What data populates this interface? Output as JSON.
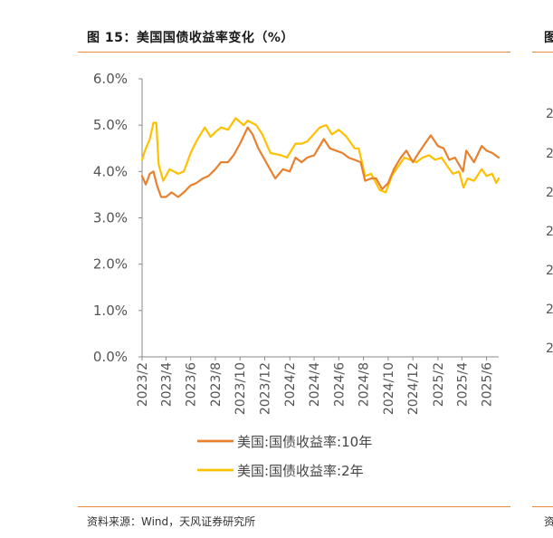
{
  "figure": {
    "title": "图 15：美国国债收益率变化（%）",
    "source": "资料来源：Wind，天风证券研究所",
    "neighbor_title_fragment": "图",
    "neighbor_source_fragment": "资",
    "neighbor_ticks": [
      "2",
      "2",
      "2",
      "2",
      "2",
      "2",
      "2"
    ]
  },
  "colors": {
    "accent_rule": "#e6893a",
    "series_10y": "#e8802e",
    "series_2y": "#ffc000"
  },
  "chart_data": {
    "type": "line",
    "title": "",
    "xlabel": "",
    "ylabel": "",
    "ylim": [
      0,
      6
    ],
    "yticks": [
      "0.0%",
      "1.0%",
      "2.0%",
      "3.0%",
      "4.0%",
      "5.0%",
      "6.0%"
    ],
    "xlim": [
      "2023-02",
      "2025-07"
    ],
    "xticks": [
      "2023/2",
      "2023/4",
      "2023/6",
      "2023/8",
      "2023/10",
      "2023/12",
      "2024/2",
      "2024/4",
      "2024/6",
      "2024/8",
      "2024/10",
      "2024/12",
      "2025/2",
      "2025/4",
      "2025/6"
    ],
    "grid": false,
    "legend_position": "bottom",
    "series": [
      {
        "name": "美国:国债收益率:10年",
        "color": "#e8802e",
        "points": [
          [
            "2023-02-01",
            3.9
          ],
          [
            "2023-02-10",
            3.72
          ],
          [
            "2023-02-20",
            3.95
          ],
          [
            "2023-03-01",
            4.0
          ],
          [
            "2023-03-10",
            3.7
          ],
          [
            "2023-03-20",
            3.45
          ],
          [
            "2023-04-01",
            3.45
          ],
          [
            "2023-04-15",
            3.55
          ],
          [
            "2023-05-01",
            3.45
          ],
          [
            "2023-05-15",
            3.55
          ],
          [
            "2023-06-01",
            3.7
          ],
          [
            "2023-06-15",
            3.75
          ],
          [
            "2023-07-01",
            3.85
          ],
          [
            "2023-07-15",
            3.9
          ],
          [
            "2023-08-01",
            4.05
          ],
          [
            "2023-08-15",
            4.2
          ],
          [
            "2023-09-01",
            4.2
          ],
          [
            "2023-09-15",
            4.35
          ],
          [
            "2023-10-01",
            4.6
          ],
          [
            "2023-10-20",
            4.95
          ],
          [
            "2023-11-01",
            4.8
          ],
          [
            "2023-11-15",
            4.5
          ],
          [
            "2023-12-01",
            4.25
          ],
          [
            "2023-12-27",
            3.85
          ],
          [
            "2024-01-15",
            4.05
          ],
          [
            "2024-02-01",
            4.0
          ],
          [
            "2024-02-15",
            4.3
          ],
          [
            "2024-03-01",
            4.2
          ],
          [
            "2024-03-15",
            4.3
          ],
          [
            "2024-04-01",
            4.35
          ],
          [
            "2024-04-25",
            4.7
          ],
          [
            "2024-05-10",
            4.5
          ],
          [
            "2024-05-25",
            4.45
          ],
          [
            "2024-06-10",
            4.4
          ],
          [
            "2024-06-25",
            4.3
          ],
          [
            "2024-07-10",
            4.25
          ],
          [
            "2024-07-25",
            4.2
          ],
          [
            "2024-08-05",
            3.8
          ],
          [
            "2024-08-20",
            3.85
          ],
          [
            "2024-09-01",
            3.85
          ],
          [
            "2024-09-16",
            3.62
          ],
          [
            "2024-10-01",
            3.75
          ],
          [
            "2024-10-15",
            4.05
          ],
          [
            "2024-11-01",
            4.3
          ],
          [
            "2024-11-15",
            4.45
          ],
          [
            "2024-12-01",
            4.2
          ],
          [
            "2024-12-15",
            4.4
          ],
          [
            "2025-01-14",
            4.78
          ],
          [
            "2025-02-01",
            4.55
          ],
          [
            "2025-02-15",
            4.5
          ],
          [
            "2025-03-01",
            4.25
          ],
          [
            "2025-03-15",
            4.3
          ],
          [
            "2025-04-04",
            4.0
          ],
          [
            "2025-04-12",
            4.45
          ],
          [
            "2025-05-01",
            4.2
          ],
          [
            "2025-05-20",
            4.55
          ],
          [
            "2025-06-01",
            4.45
          ],
          [
            "2025-06-15",
            4.4
          ],
          [
            "2025-07-01",
            4.3
          ]
        ]
      },
      {
        "name": "美国:国债收益率:2年",
        "color": "#ffc000",
        "points": [
          [
            "2023-02-01",
            4.25
          ],
          [
            "2023-02-08",
            4.45
          ],
          [
            "2023-02-20",
            4.7
          ],
          [
            "2023-03-01",
            5.05
          ],
          [
            "2023-03-08",
            5.05
          ],
          [
            "2023-03-14",
            4.15
          ],
          [
            "2023-03-25",
            3.8
          ],
          [
            "2023-04-10",
            4.05
          ],
          [
            "2023-05-01",
            3.95
          ],
          [
            "2023-05-15",
            4.0
          ],
          [
            "2023-06-01",
            4.4
          ],
          [
            "2023-06-15",
            4.65
          ],
          [
            "2023-07-06",
            4.95
          ],
          [
            "2023-07-20",
            4.75
          ],
          [
            "2023-08-01",
            4.85
          ],
          [
            "2023-08-15",
            4.95
          ],
          [
            "2023-09-01",
            4.9
          ],
          [
            "2023-09-20",
            5.15
          ],
          [
            "2023-10-10",
            5.0
          ],
          [
            "2023-10-20",
            5.1
          ],
          [
            "2023-11-10",
            5.0
          ],
          [
            "2023-11-25",
            4.8
          ],
          [
            "2023-12-15",
            4.4
          ],
          [
            "2024-01-10",
            4.35
          ],
          [
            "2024-01-25",
            4.3
          ],
          [
            "2024-02-15",
            4.6
          ],
          [
            "2024-03-01",
            4.6
          ],
          [
            "2024-03-15",
            4.65
          ],
          [
            "2024-04-15",
            4.95
          ],
          [
            "2024-05-01",
            5.0
          ],
          [
            "2024-05-15",
            4.8
          ],
          [
            "2024-06-01",
            4.9
          ],
          [
            "2024-06-20",
            4.75
          ],
          [
            "2024-07-10",
            4.5
          ],
          [
            "2024-07-20",
            4.5
          ],
          [
            "2024-08-05",
            3.9
          ],
          [
            "2024-08-20",
            3.95
          ],
          [
            "2024-09-10",
            3.6
          ],
          [
            "2024-09-25",
            3.55
          ],
          [
            "2024-10-10",
            3.9
          ],
          [
            "2024-10-25",
            4.1
          ],
          [
            "2024-11-10",
            4.3
          ],
          [
            "2024-11-25",
            4.25
          ],
          [
            "2024-12-10",
            4.2
          ],
          [
            "2024-12-25",
            4.3
          ],
          [
            "2025-01-10",
            4.35
          ],
          [
            "2025-01-25",
            4.25
          ],
          [
            "2025-02-10",
            4.3
          ],
          [
            "2025-02-25",
            4.1
          ],
          [
            "2025-03-10",
            3.95
          ],
          [
            "2025-03-25",
            4.0
          ],
          [
            "2025-04-05",
            3.65
          ],
          [
            "2025-04-15",
            3.85
          ],
          [
            "2025-05-01",
            3.8
          ],
          [
            "2025-05-20",
            4.05
          ],
          [
            "2025-06-01",
            3.9
          ],
          [
            "2025-06-15",
            3.95
          ],
          [
            "2025-06-25",
            3.75
          ],
          [
            "2025-07-01",
            3.85
          ]
        ]
      }
    ]
  }
}
